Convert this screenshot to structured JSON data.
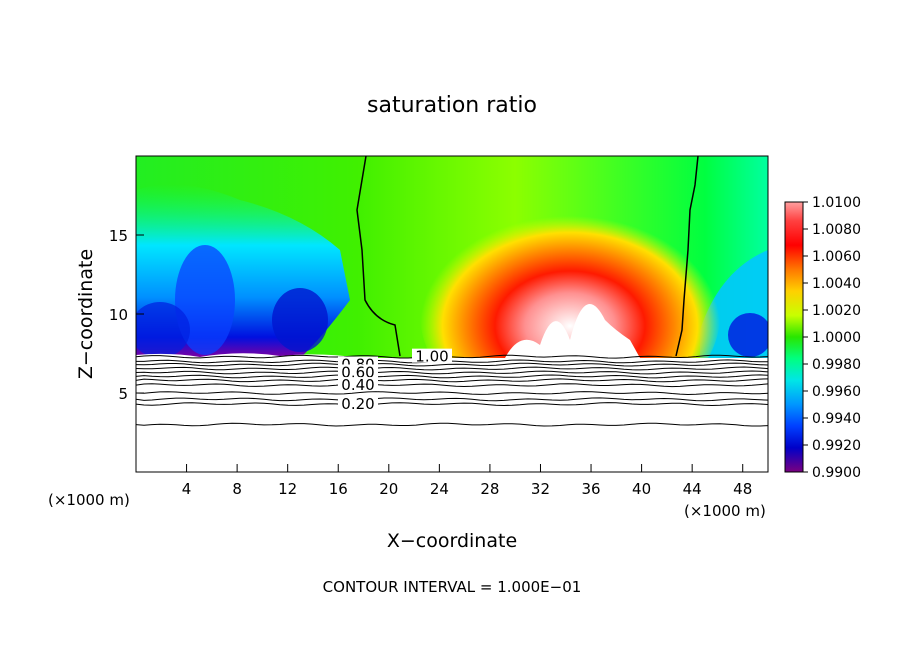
{
  "chart_data": {
    "type": "heatmap",
    "title": "saturation ratio",
    "xlabel": "X−coordinate",
    "ylabel": "Z−coordinate",
    "x_unit": "(×1000 m)",
    "z_unit": "(×1000 m)",
    "xlim": [
      0,
      50
    ],
    "ylim": [
      0,
      20
    ],
    "x_ticks": [
      4,
      8,
      12,
      16,
      20,
      24,
      28,
      32,
      36,
      40,
      44,
      48
    ],
    "y_ticks": [
      5,
      10,
      15
    ],
    "footer": "CONTOUR INTERVAL = 1.000E−01",
    "colorbar": {
      "labels": [
        "1.0100",
        "1.0080",
        "1.0060",
        "1.0040",
        "1.0020",
        "1.0000",
        "0.9980",
        "0.9960",
        "0.9940",
        "0.9920",
        "0.9900"
      ],
      "min": 0.99,
      "max": 1.01,
      "colors": [
        "#ff8c8c",
        "#ff3030",
        "#ff0000",
        "#ff7800",
        "#ffcc00",
        "#e6ff00",
        "#b4ff00",
        "#66ff00",
        "#00ff00",
        "#00ff80",
        "#00ffcc",
        "#00e6ff",
        "#00b4ff",
        "#0078ff",
        "#0040ff",
        "#0000ff",
        "#0000b4",
        "#800080"
      ]
    },
    "contours": [
      {
        "label": "1.00",
        "z": 7.3
      },
      {
        "label": "0.80",
        "z": 6.8
      },
      {
        "label": "0.60",
        "z": 6.3
      },
      {
        "label": "0.40",
        "z": 5.5
      },
      {
        "label": "0.20",
        "z": 4.3
      }
    ]
  }
}
